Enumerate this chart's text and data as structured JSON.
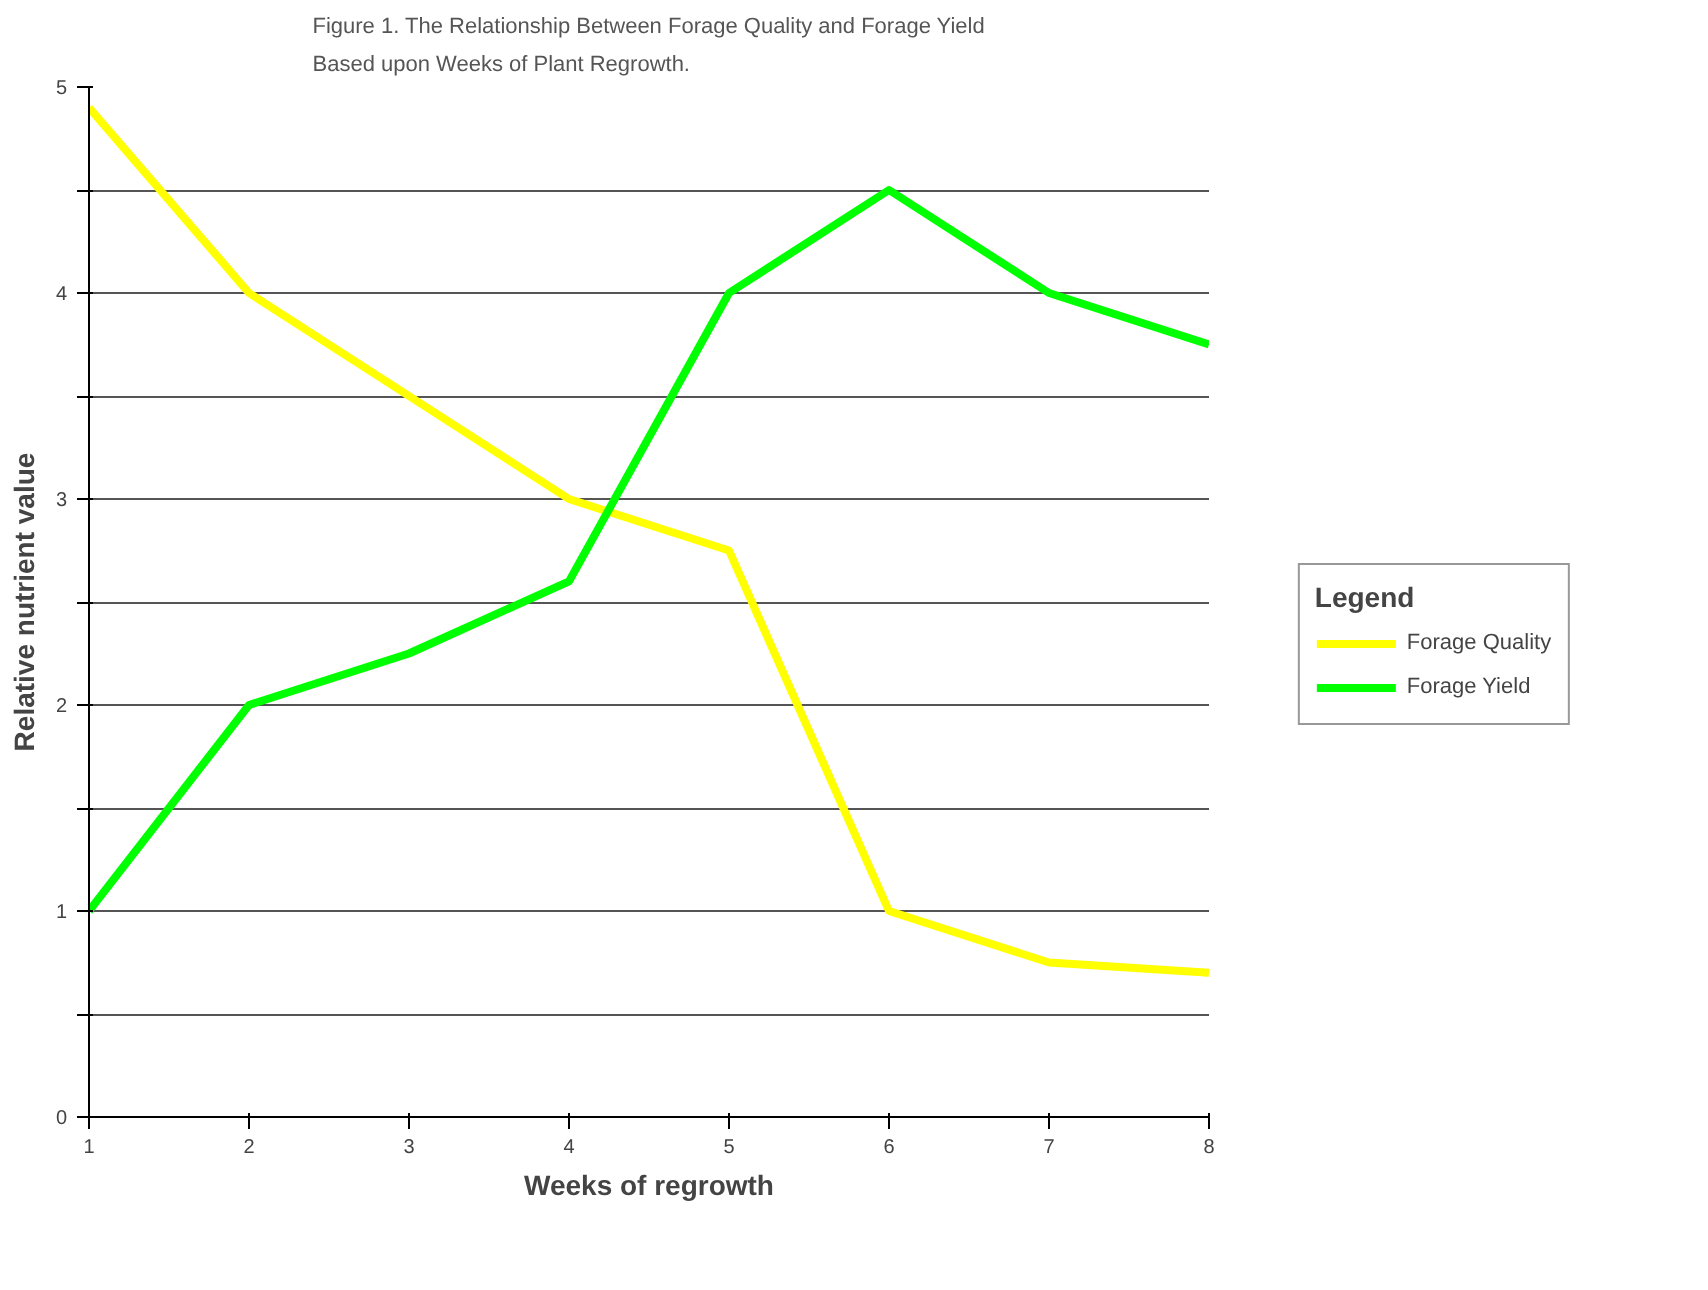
{
  "chart_data": {
    "type": "line",
    "title": "Figure 1. The Relationship Between Forage Quality and Forage Yield\nBased upon Weeks of Plant Regrowth.",
    "xlabel": "Weeks of regrowth",
    "ylabel": "Relative nutrient value",
    "legend_title": "Legend",
    "x": [
      1,
      2,
      3,
      4,
      5,
      6,
      7,
      8
    ],
    "series": [
      {
        "name": "Forage Quality",
        "color": "#ffff00",
        "values": [
          4.9,
          4.0,
          3.5,
          3.0,
          2.75,
          1.0,
          0.75,
          0.7
        ]
      },
      {
        "name": "Forage Yield",
        "color": "#00ff00",
        "values": [
          1.0,
          2.0,
          2.25,
          2.6,
          4.0,
          4.5,
          4.0,
          3.75
        ]
      }
    ],
    "xlim": [
      1,
      8
    ],
    "xticks": [
      1,
      2,
      3,
      4,
      5,
      6,
      7,
      8
    ],
    "ylim": [
      0,
      5
    ],
    "yticks": [
      0,
      {
        "value": 0.5,
        "label": null
      },
      1,
      {
        "value": 1.5,
        "label": null
      },
      2,
      {
        "value": 2.5,
        "label": null
      },
      3,
      {
        "value": 3.5,
        "label": null
      },
      4,
      {
        "value": 4.5,
        "label": null
      },
      5
    ],
    "grid": "y",
    "legend": "right",
    "marker": "none",
    "line_style": "solid"
  }
}
